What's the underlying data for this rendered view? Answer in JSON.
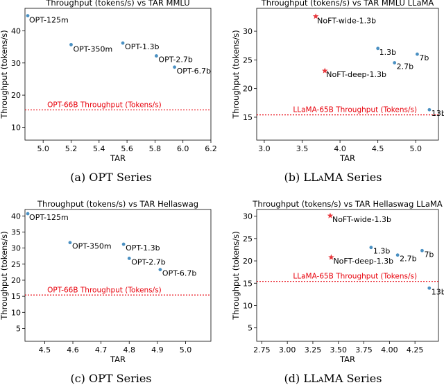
{
  "captions": [
    {
      "prefix": "(a) OPT Series",
      "sc": "",
      "suffix": ""
    },
    {
      "prefix": "(b) L",
      "sc": "LaMA",
      "suffix": " Series"
    },
    {
      "prefix": "(c) OPT Series",
      "sc": "",
      "suffix": ""
    },
    {
      "prefix": "(d) L",
      "sc": "LaMA",
      "suffix": " Series"
    }
  ],
  "colors": {
    "point": "#4a90c2",
    "star": "#e8383d",
    "ref_line": "#e8000b",
    "text": "#000000"
  },
  "chart_data": [
    {
      "type": "scatter",
      "title": "Throughput (tokens/s) vs TAR MMLU",
      "xlabel": "TAR",
      "ylabel": "Throughput (tokens/s)",
      "xlim": [
        4.87,
        6.2
      ],
      "ylim": [
        6,
        47
      ],
      "xticks": [
        "5.0",
        "5.2",
        "5.4",
        "5.6",
        "5.8",
        "6.0",
        "6.2"
      ],
      "yticks": [
        "10",
        "20",
        "30",
        "40"
      ],
      "points": [
        {
          "label": "OPT-125m",
          "x": 4.89,
          "y": 44.7,
          "marker": "dot"
        },
        {
          "label": "OPT-350m",
          "x": 5.2,
          "y": 35.7,
          "marker": "dot"
        },
        {
          "label": "OPT-1.3b",
          "x": 5.57,
          "y": 36.2,
          "marker": "dot"
        },
        {
          "label": "OPT-2.7b",
          "x": 5.81,
          "y": 32.2,
          "marker": "dot"
        },
        {
          "label": "OPT-6.7b",
          "x": 5.94,
          "y": 28.7,
          "marker": "dot"
        }
      ],
      "ref_line": {
        "label": "OPT-66B Throughput (Tokens/s)",
        "y": 15.4
      }
    },
    {
      "type": "scatter",
      "title": "Throughput (tokens/s) vs TAR MMLU LLaMA",
      "xlabel": "TAR",
      "ylabel": "Throughput (tokens/s)",
      "xlim": [
        2.9,
        5.3
      ],
      "ylim": [
        11,
        34
      ],
      "xticks": [
        "3.0",
        "3.5",
        "4.0",
        "4.5",
        "5.0"
      ],
      "yticks": [
        "15",
        "20",
        "25",
        "30"
      ],
      "points": [
        {
          "label": "NoFT-wide-1.3b",
          "x": 3.68,
          "y": 32.6,
          "marker": "star"
        },
        {
          "label": "NoFT-deep-1.3b",
          "x": 3.8,
          "y": 23.1,
          "marker": "star"
        },
        {
          "label": "1.3b",
          "x": 4.5,
          "y": 27.0,
          "marker": "dot"
        },
        {
          "label": "2.7b",
          "x": 4.72,
          "y": 24.5,
          "marker": "dot"
        },
        {
          "label": "7b",
          "x": 5.02,
          "y": 26.0,
          "marker": "dot"
        },
        {
          "label": "13b",
          "x": 5.18,
          "y": 16.3,
          "marker": "dot"
        }
      ],
      "ref_line": {
        "label": "LLaMA-65B Throughput (Tokens/s)",
        "y": 15.4
      }
    },
    {
      "type": "scatter",
      "title": "Throughput (tokens/s) vs TAR Hellaswag",
      "xlabel": "TAR",
      "ylabel": "Throughput (tokens/s)",
      "xlim": [
        4.43,
        5.09
      ],
      "ylim": [
        1,
        42
      ],
      "xticks": [
        "4.5",
        "4.6",
        "4.7",
        "4.8",
        "4.9",
        "5.0"
      ],
      "yticks": [
        "5",
        "10",
        "15",
        "20",
        "25",
        "30",
        "35",
        "40"
      ],
      "points": [
        {
          "label": "OPT-125m",
          "x": 4.44,
          "y": 40.7,
          "marker": "dot"
        },
        {
          "label": "OPT-350m",
          "x": 4.59,
          "y": 31.7,
          "marker": "dot"
        },
        {
          "label": "OPT-1.3b",
          "x": 4.78,
          "y": 31.2,
          "marker": "dot"
        },
        {
          "label": "OPT-2.7b",
          "x": 4.8,
          "y": 26.8,
          "marker": "dot"
        },
        {
          "label": "OPT-6.7b",
          "x": 4.91,
          "y": 23.3,
          "marker": "dot"
        }
      ],
      "ref_line": {
        "label": "OPT-66B Throughput (Tokens/s)",
        "y": 15.4
      }
    },
    {
      "type": "scatter",
      "title": "Throughput (tokens/s) vs TAR Hellaswag LLaMA",
      "xlabel": "TAR",
      "ylabel": "Throughput (tokens/s)",
      "xlim": [
        2.7,
        4.48
      ],
      "ylim": [
        2,
        31.5
      ],
      "xticks": [
        "2.75",
        "3.00",
        "3.25",
        "3.50",
        "3.75",
        "4.00",
        "4.25"
      ],
      "yticks": [
        "5",
        "10",
        "15",
        "20",
        "25",
        "30"
      ],
      "points": [
        {
          "label": "NoFT-wide-1.3b",
          "x": 3.42,
          "y": 30.1,
          "marker": "star"
        },
        {
          "label": "NoFT-deep-1.3b",
          "x": 3.43,
          "y": 20.8,
          "marker": "star"
        },
        {
          "label": "1.3b",
          "x": 3.82,
          "y": 23.0,
          "marker": "dot"
        },
        {
          "label": "2.7b",
          "x": 4.08,
          "y": 21.3,
          "marker": "dot"
        },
        {
          "label": "7b",
          "x": 4.32,
          "y": 22.3,
          "marker": "dot"
        },
        {
          "label": "13b",
          "x": 4.39,
          "y": 13.9,
          "marker": "dot"
        }
      ],
      "ref_line": {
        "label": "LLaMA-65B Throughput (Tokens/s)",
        "y": 15.4
      }
    }
  ]
}
